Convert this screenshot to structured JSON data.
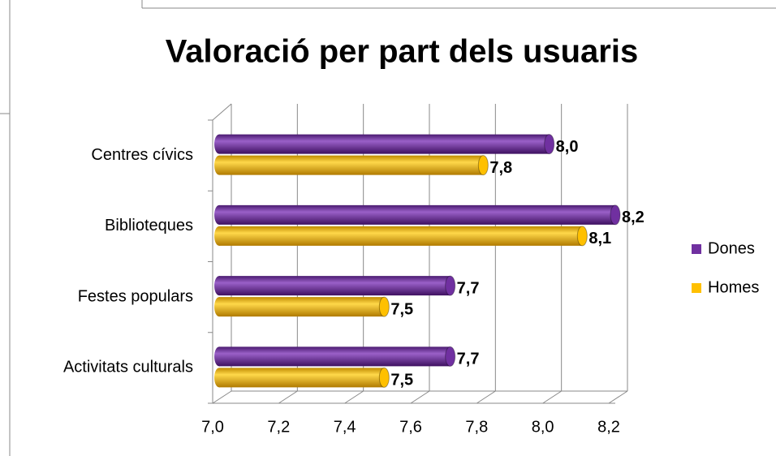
{
  "chart_data": {
    "type": "bar3d",
    "orientation": "horizontal",
    "title": "Valoració per part dels usuaris",
    "categories": [
      "Centres cívics",
      "Biblioteques",
      "Festes populars",
      "Activitats culturals"
    ],
    "series": [
      {
        "name": "Dones",
        "color": "#7030a0",
        "values": [
          8.0,
          8.2,
          7.7,
          7.7
        ],
        "value_labels": [
          "8,0",
          "8,2",
          "7,7",
          "7,7"
        ]
      },
      {
        "name": "Homes",
        "color": "#ffc000",
        "values": [
          7.8,
          8.1,
          7.5,
          7.5
        ],
        "value_labels": [
          "7,8",
          "8,1",
          "7,5",
          "7,5"
        ]
      }
    ],
    "xlim": [
      7.0,
      8.2
    ],
    "xticks": [
      {
        "value": 7.0,
        "label": "7,0"
      },
      {
        "value": 7.2,
        "label": "7,2"
      },
      {
        "value": 7.4,
        "label": "7,4"
      },
      {
        "value": 7.6,
        "label": "7,6"
      },
      {
        "value": 7.8,
        "label": "7,8"
      },
      {
        "value": 8.0,
        "label": "8,0"
      },
      {
        "value": 8.2,
        "label": "8,2"
      }
    ],
    "grid": true,
    "legend": "right"
  }
}
